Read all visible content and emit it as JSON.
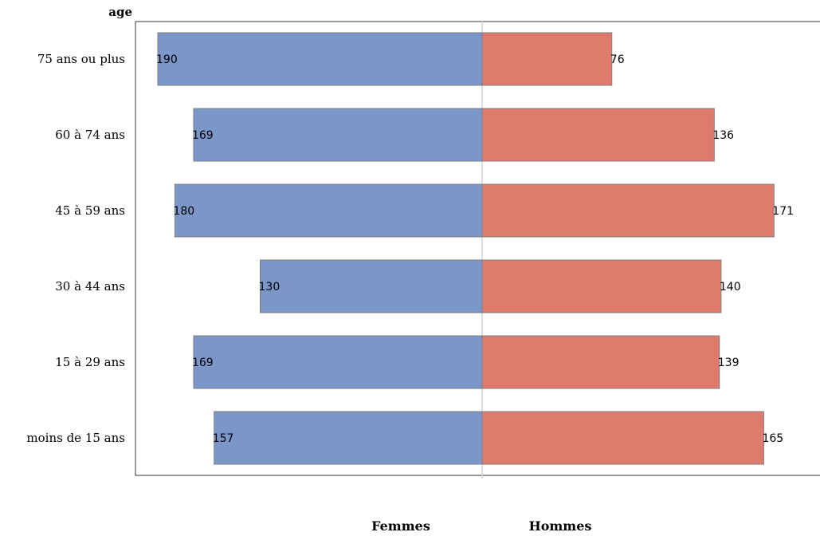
{
  "chart_data": {
    "type": "bar",
    "orientation": "horizontal",
    "layout": "population-pyramid",
    "ylabel": "age",
    "categories": [
      "75 ans ou plus",
      "60 à 74 ans",
      "45 à 59 ans",
      "30 à 44 ans",
      "15 à 29 ans",
      "moins de 15 ans"
    ],
    "series": [
      {
        "name": "Femmes",
        "side": "left",
        "color": "#7b96c9",
        "values": [
          190,
          169,
          180,
          130,
          169,
          157
        ]
      },
      {
        "name": "Hommes",
        "side": "right",
        "color": "#de7b6d",
        "values": [
          76,
          136,
          171,
          140,
          139,
          165
        ]
      }
    ],
    "xlim": [
      -200,
      200
    ],
    "grid": false,
    "legend_position": "bottom"
  }
}
